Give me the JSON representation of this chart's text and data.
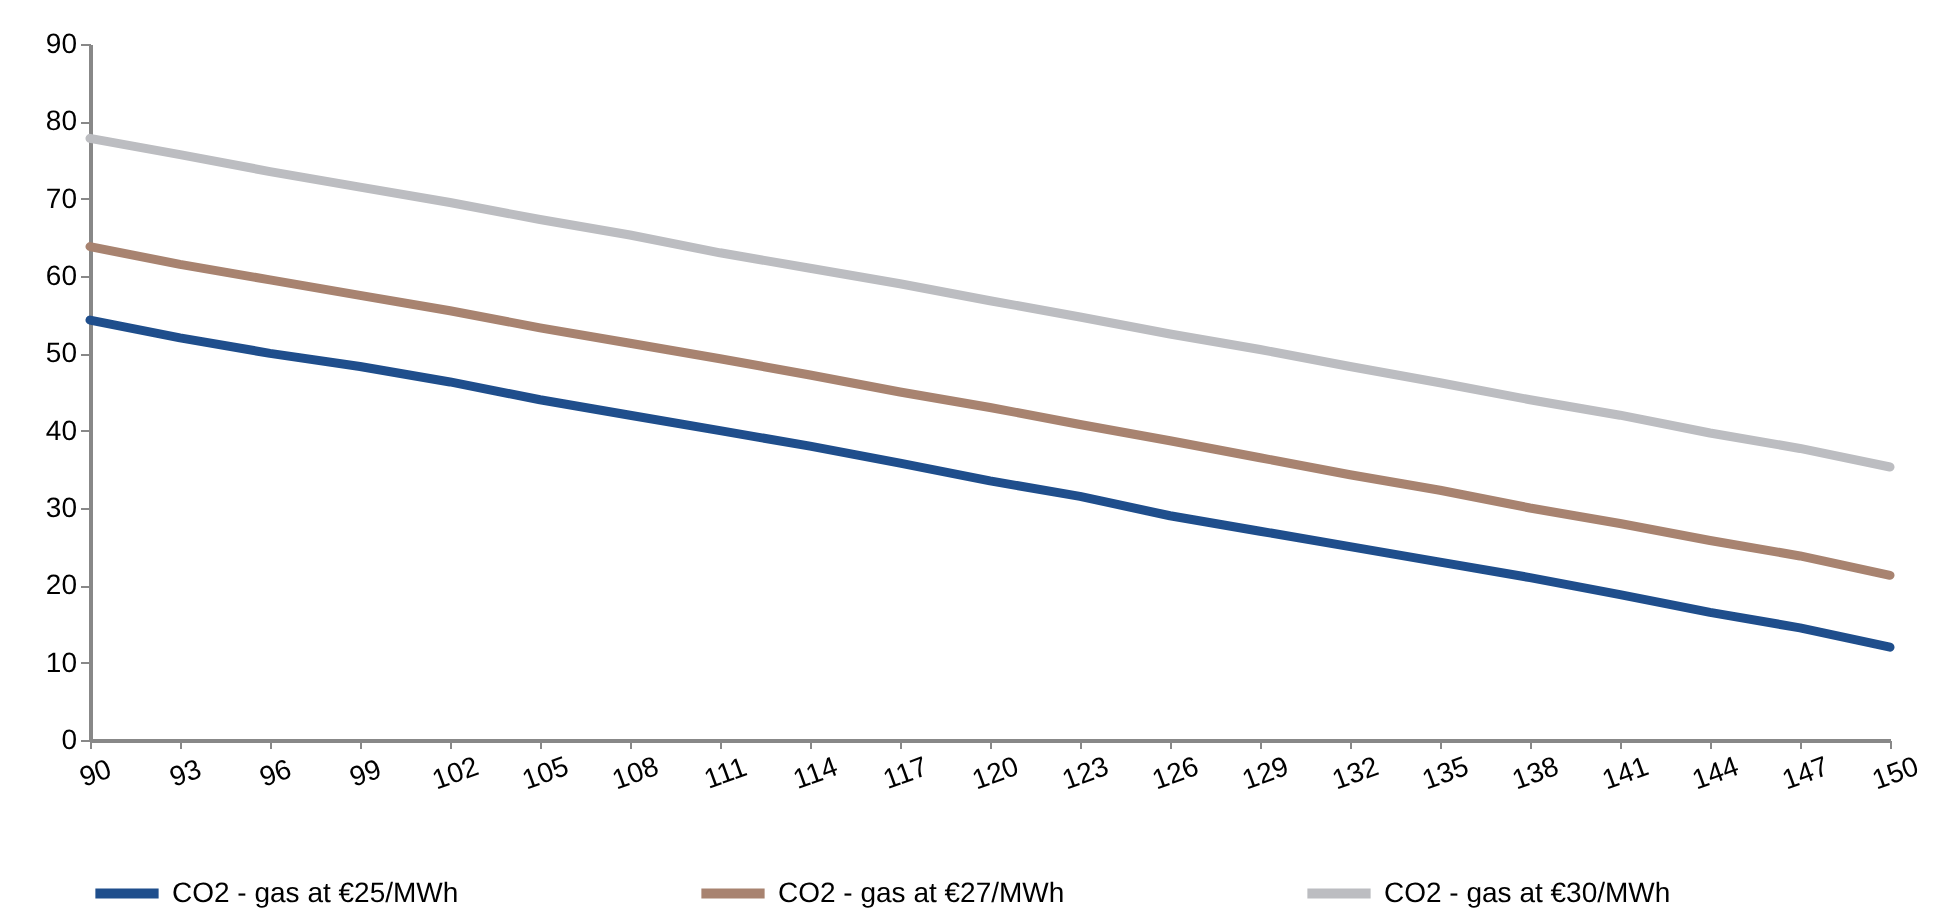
{
  "chart_data": {
    "type": "line",
    "x": [
      90,
      93,
      96,
      99,
      102,
      105,
      108,
      111,
      114,
      117,
      120,
      123,
      126,
      129,
      132,
      135,
      138,
      141,
      144,
      147,
      150
    ],
    "xlim": [
      90,
      150
    ],
    "xticks": [
      90,
      93,
      96,
      99,
      102,
      105,
      108,
      111,
      114,
      117,
      120,
      123,
      126,
      129,
      132,
      135,
      138,
      141,
      144,
      147,
      150
    ],
    "ylim": [
      0,
      90
    ],
    "yticks": [
      0,
      10,
      20,
      30,
      40,
      50,
      60,
      70,
      80,
      90
    ],
    "grid": false,
    "legend": "bottom",
    "marker": "none",
    "line_style": "solid",
    "series": [
      {
        "name": "CO2 - gas at €25/MWh",
        "color": "#1f4e8c",
        "values": [
          54.3,
          52,
          50,
          48.3,
          46.3,
          44,
          42,
          40,
          38,
          35.8,
          33.5,
          31.5,
          29,
          27,
          25,
          23,
          21,
          18.8,
          16.5,
          14.5,
          12
        ]
      },
      {
        "name": "CO2 - gas at €27/MWh",
        "color": "#a88370",
        "values": [
          63.8,
          61.5,
          59.5,
          57.5,
          55.5,
          53.3,
          51.3,
          49.3,
          47.2,
          45,
          43,
          40.8,
          38.7,
          36.5,
          34.3,
          32.3,
          30,
          28,
          25.8,
          23.8,
          21.3
        ]
      },
      {
        "name": "CO2 - gas at €30/MWh",
        "color": "#bcbdc1",
        "values": [
          77.8,
          75.7,
          73.5,
          71.5,
          69.5,
          67.3,
          65.3,
          63,
          61,
          59,
          56.8,
          54.7,
          52.5,
          50.5,
          48.3,
          46.2,
          44,
          42,
          39.7,
          37.7,
          35.3
        ]
      }
    ]
  }
}
